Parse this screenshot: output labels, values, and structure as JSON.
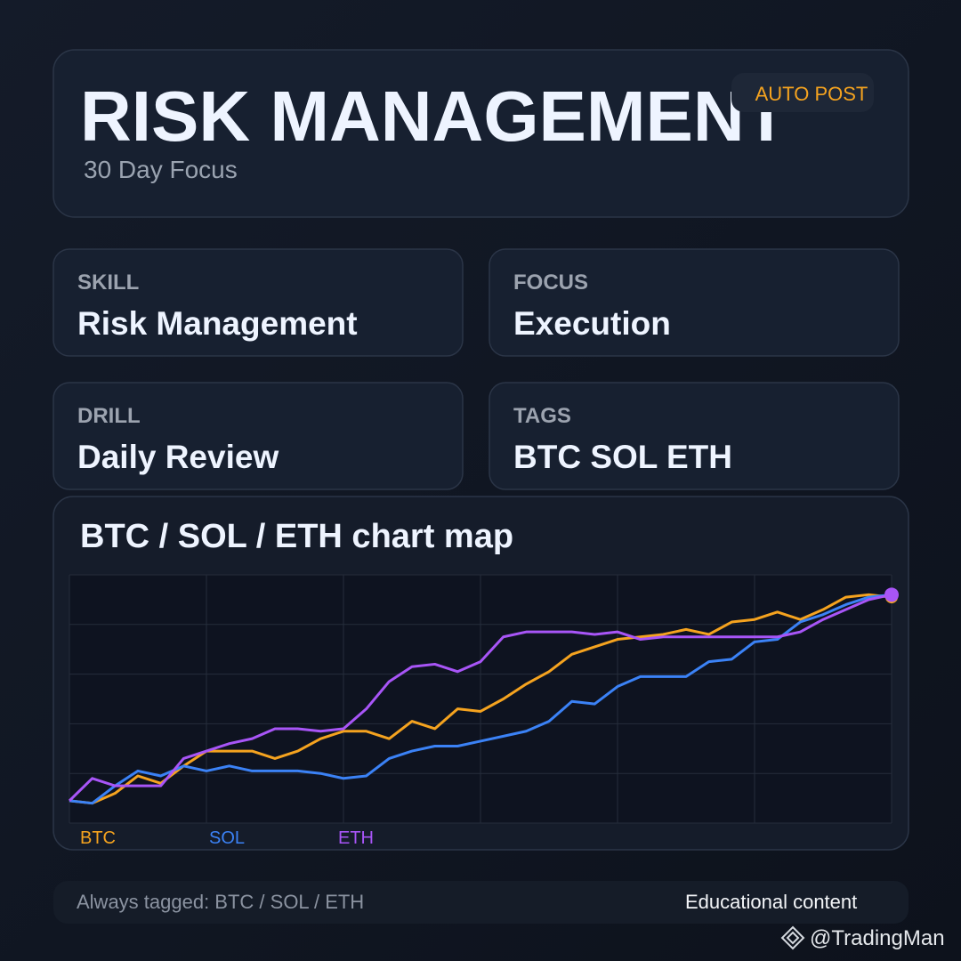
{
  "header": {
    "title": "RISK MANAGEMENT",
    "badge": "AUTO POST",
    "subtitle": "30 Day Focus"
  },
  "cards": [
    {
      "label": "SKILL",
      "value": "Risk Management"
    },
    {
      "label": "FOCUS",
      "value": "Execution"
    },
    {
      "label": "DRILL",
      "value": "Daily Review"
    },
    {
      "label": "TAGS",
      "value": "BTC SOL ETH"
    }
  ],
  "chart_data": {
    "type": "line",
    "title": "BTC / SOL / ETH chart map",
    "ylim": [
      0,
      100
    ],
    "yticks": [
      0,
      20,
      40,
      60,
      80,
      100
    ],
    "grid": true,
    "series": [
      {
        "name": "BTC",
        "color": "#f5a31f",
        "values": [
          9,
          8,
          12,
          19,
          16,
          23,
          29,
          29,
          29,
          26,
          29,
          34,
          37,
          37,
          34,
          41,
          38,
          46,
          45,
          50,
          56,
          61,
          68,
          71,
          74,
          75,
          76,
          78,
          76,
          81,
          82,
          85,
          82,
          86,
          91,
          92,
          91
        ]
      },
      {
        "name": "SOL",
        "color": "#3b82f6",
        "values": [
          9,
          8,
          15,
          21,
          19,
          23,
          21,
          23,
          21,
          21,
          21,
          20,
          18,
          19,
          26,
          29,
          31,
          31,
          33,
          35,
          37,
          41,
          49,
          48,
          55,
          59,
          59,
          59,
          65,
          66,
          73,
          74,
          81,
          84,
          88,
          91,
          92
        ]
      },
      {
        "name": "ETH",
        "color": "#a855f7",
        "values": [
          9,
          18,
          15,
          15,
          15,
          26,
          29,
          32,
          34,
          38,
          38,
          37,
          38,
          46,
          57,
          63,
          64,
          61,
          65,
          75,
          77,
          77,
          77,
          76,
          77,
          74,
          75,
          75,
          75,
          75,
          75,
          75,
          77,
          82,
          86,
          90,
          92
        ]
      }
    ]
  },
  "footer": {
    "left": "Always tagged: BTC / SOL / ETH",
    "right": "Educational content"
  },
  "watermark": "@TradingMan"
}
